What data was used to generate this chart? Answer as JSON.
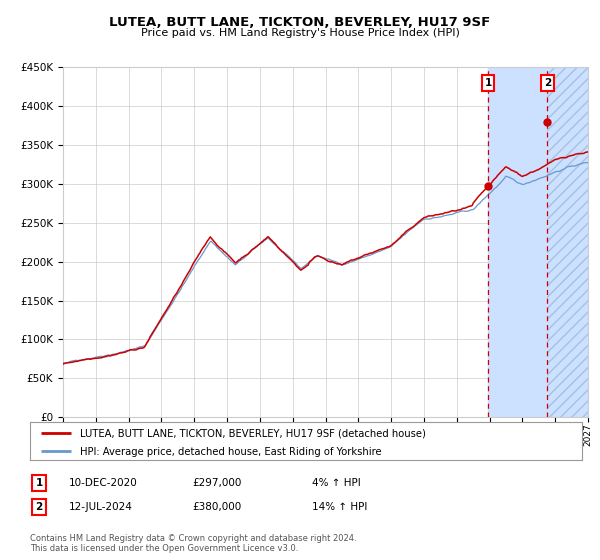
{
  "title": "LUTEA, BUTT LANE, TICKTON, BEVERLEY, HU17 9SF",
  "subtitle": "Price paid vs. HM Land Registry's House Price Index (HPI)",
  "legend_line1": "LUTEA, BUTT LANE, TICKTON, BEVERLEY, HU17 9SF (detached house)",
  "legend_line2": "HPI: Average price, detached house, East Riding of Yorkshire",
  "footnote": "Contains HM Land Registry data © Crown copyright and database right 2024.\nThis data is licensed under the Open Government Licence v3.0.",
  "transaction1_label": "1",
  "transaction1_date": "10-DEC-2020",
  "transaction1_price": "£297,000",
  "transaction1_hpi": "4% ↑ HPI",
  "transaction2_label": "2",
  "transaction2_date": "12-JUL-2024",
  "transaction2_price": "£380,000",
  "transaction2_hpi": "14% ↑ HPI",
  "hpi_color": "#6699cc",
  "price_color": "#cc0000",
  "marker_color": "#cc0000",
  "dashed_line_color": "#cc0000",
  "shade_color": "#cce0ff",
  "hatch_color": "#99bbdd",
  "background_color": "#ffffff",
  "grid_color": "#cccccc",
  "ylim": [
    0,
    450000
  ],
  "ytick_values": [
    0,
    50000,
    100000,
    150000,
    200000,
    250000,
    300000,
    350000,
    400000,
    450000
  ],
  "year_start": 1995,
  "year_end": 2027,
  "transaction1_year": 2020.92,
  "transaction2_year": 2024.53,
  "transaction1_value": 297000,
  "transaction2_value": 380000
}
